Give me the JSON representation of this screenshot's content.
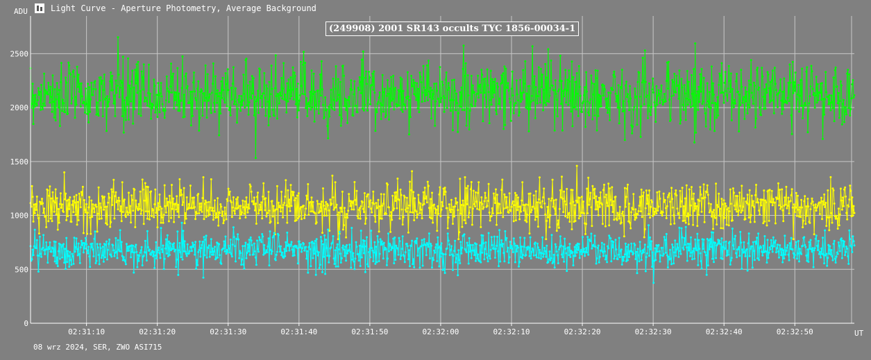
{
  "window": {
    "title": "Light Curve - Aperture Photometry, Average Background",
    "icon": "light-curve-app-icon"
  },
  "footer_text": "08 wrz 2024, SER, ZWO ASI715",
  "chart_data": {
    "type": "line",
    "title": "(249908) 2001 SR143 occults TYC 1856-00034-1",
    "xlabel": "UT",
    "ylabel": "ADU",
    "ylim": [
      0,
      2850
    ],
    "xlim": [
      "02:31:02.1",
      "02:32:58.4"
    ],
    "grid": true,
    "y_ticks": [
      0,
      500,
      1000,
      1500,
      2000,
      2500
    ],
    "x_ticks": [
      "02:31:10",
      "02:31:20",
      "02:31:30",
      "02:31:40",
      "02:31:50",
      "02:32:00",
      "02:32:10",
      "02:32:20",
      "02:32:30",
      "02:32:40",
      "02:32:50"
    ],
    "series": [
      {
        "color": "#00ff00",
        "mean": 2120,
        "noise_std": 150,
        "min": 1520,
        "max": 2740
      },
      {
        "color": "#ffff00",
        "mean": 1090,
        "noise_std": 110,
        "min": 780,
        "max": 1520
      },
      {
        "color": "#00ffff",
        "mean": 680,
        "noise_std": 85,
        "min": 370,
        "max": 980
      }
    ]
  }
}
